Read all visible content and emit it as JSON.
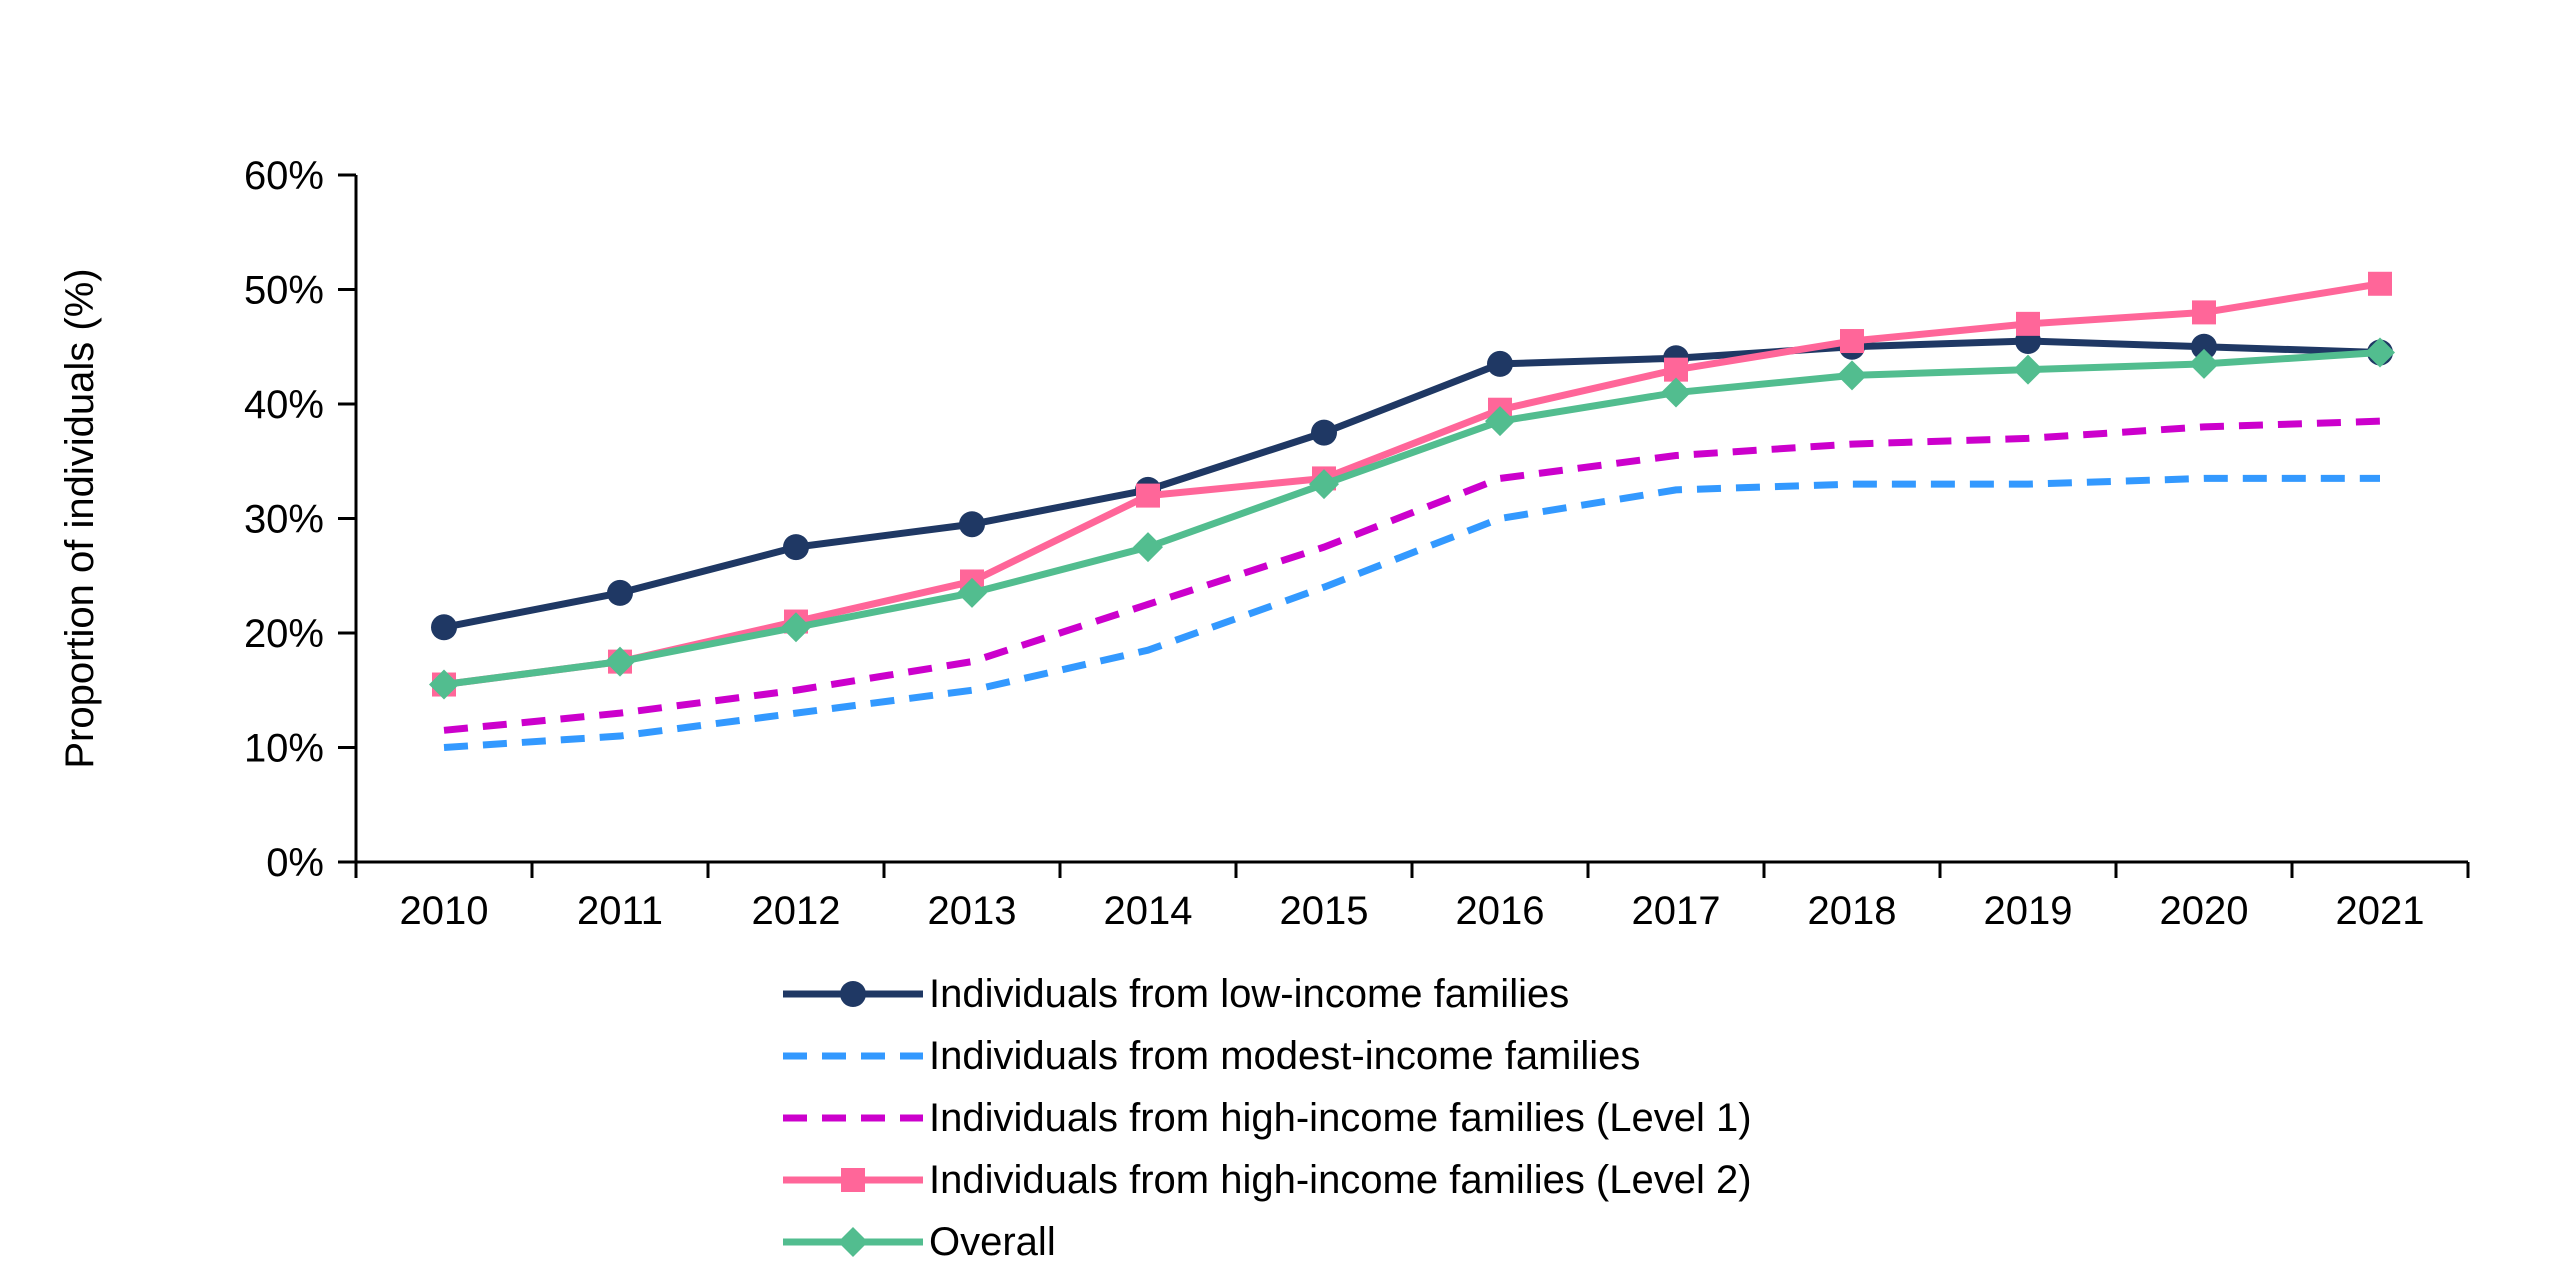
{
  "chart_data": {
    "type": "line",
    "title": "",
    "xlabel": "",
    "ylabel": "Proportion of individuals (%)",
    "ylim": [
      0,
      60
    ],
    "ytick_step": 10,
    "ytick_suffix": "%",
    "grid": false,
    "legend_position": "bottom",
    "categories": [
      "2010",
      "2011",
      "2012",
      "2013",
      "2014",
      "2015",
      "2016",
      "2017",
      "2018",
      "2019",
      "2020",
      "2021"
    ],
    "series": [
      {
        "name": "Individuals from low-income families",
        "color": "#1f3864",
        "dash": false,
        "marker": "circle",
        "values": [
          20.5,
          23.5,
          27.5,
          29.5,
          32.5,
          37.5,
          43.5,
          44,
          45,
          45.5,
          45,
          44.5
        ]
      },
      {
        "name": "Individuals from modest-income families",
        "color": "#3399ff",
        "dash": true,
        "marker": "none",
        "values": [
          10,
          11,
          13,
          15,
          18.5,
          24,
          30,
          32.5,
          33,
          33,
          33.5,
          33.5
        ]
      },
      {
        "name": "Individuals from high-income families (Level 1)",
        "color": "#cc00cc",
        "dash": true,
        "marker": "none",
        "values": [
          11.5,
          13,
          15,
          17.5,
          22.5,
          27.5,
          33.5,
          35.5,
          36.5,
          37,
          38,
          38.5
        ]
      },
      {
        "name": "Individuals from high-income families (Level 2)",
        "color": "#ff6699",
        "dash": false,
        "marker": "square",
        "values": [
          15.5,
          17.5,
          21,
          24.5,
          32,
          33.5,
          39.5,
          43,
          45.5,
          47,
          48,
          50.5
        ]
      },
      {
        "name": "Overall",
        "color": "#52bd8f",
        "dash": false,
        "marker": "diamond",
        "values": [
          15.5,
          17.5,
          20.5,
          23.5,
          27.5,
          33,
          38.5,
          41,
          42.5,
          43,
          43.5,
          44.5
        ]
      }
    ]
  }
}
